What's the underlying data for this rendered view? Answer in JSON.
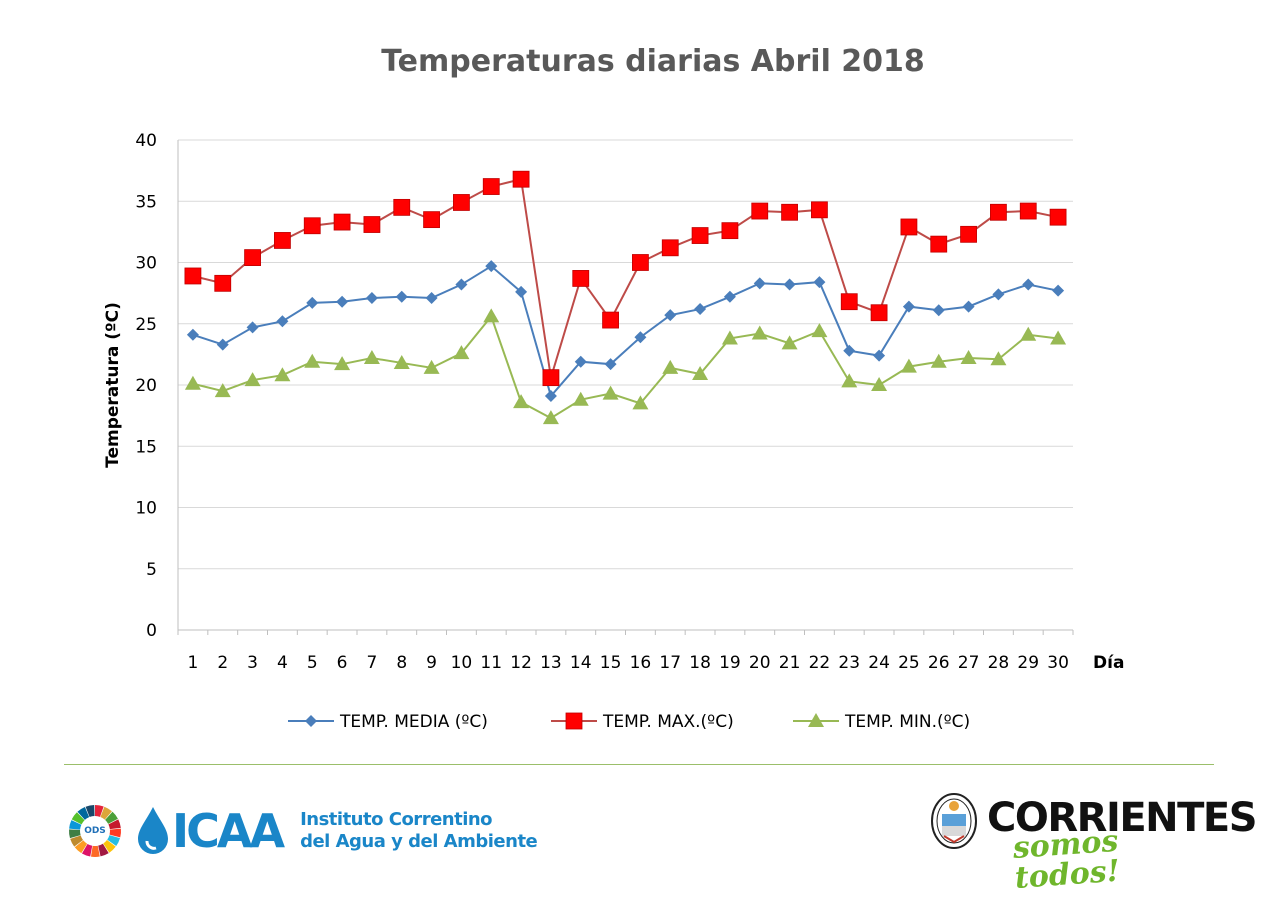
{
  "chart_data": {
    "type": "line",
    "title": "Temperaturas diarias Abril 2018",
    "xlabel": "Día",
    "ylabel": "Temperatura (ºC)",
    "ylim": [
      0,
      40
    ],
    "yticks": [
      0,
      5,
      10,
      15,
      20,
      25,
      30,
      35,
      40
    ],
    "grid": true,
    "legend_position": "bottom",
    "x": [
      1,
      2,
      3,
      4,
      5,
      6,
      7,
      8,
      9,
      10,
      11,
      12,
      13,
      14,
      15,
      16,
      17,
      18,
      19,
      20,
      21,
      22,
      23,
      24,
      25,
      26,
      27,
      28,
      29,
      30
    ],
    "series": [
      {
        "name": "TEMP. MEDIA (ºC)",
        "color": "#4a7ebb",
        "marker": "diamond",
        "values": [
          24.1,
          23.3,
          24.7,
          25.2,
          26.7,
          26.8,
          27.1,
          27.2,
          27.1,
          28.2,
          29.7,
          27.6,
          19.1,
          21.9,
          21.7,
          23.9,
          25.7,
          26.2,
          27.2,
          28.3,
          28.2,
          28.4,
          22.8,
          22.4,
          26.4,
          26.1,
          26.4,
          27.4,
          28.2,
          27.7
        ]
      },
      {
        "name": "TEMP. MAX.(ºC)",
        "color": "#be4b48",
        "marker_color": "#ff0000",
        "marker": "square",
        "values": [
          28.9,
          28.3,
          30.4,
          31.8,
          33.0,
          33.3,
          33.1,
          34.5,
          33.5,
          34.9,
          36.2,
          36.8,
          20.6,
          28.7,
          25.3,
          30.0,
          31.2,
          32.2,
          32.6,
          34.2,
          34.1,
          34.3,
          26.8,
          25.9,
          32.9,
          31.5,
          32.3,
          34.1,
          34.2,
          33.7
        ]
      },
      {
        "name": "TEMP. MIN.(ºC)",
        "color": "#98b954",
        "marker": "triangle",
        "values": [
          20.1,
          19.5,
          20.4,
          20.8,
          21.9,
          21.7,
          22.2,
          21.8,
          21.4,
          22.6,
          25.6,
          18.6,
          17.3,
          18.8,
          19.3,
          18.5,
          21.4,
          20.9,
          23.8,
          24.2,
          23.4,
          24.4,
          20.3,
          20.0,
          21.5,
          21.9,
          22.2,
          22.1,
          24.1,
          23.8
        ]
      }
    ]
  },
  "footer": {
    "ods_label": "ODS",
    "icaa_word": "ICAA",
    "icaa_line1": "Instituto Correntino",
    "icaa_line2": "del Agua y del Ambiente",
    "corrientes_word": "CORRIENTES",
    "corrientes_tagline": "somos todos!"
  }
}
